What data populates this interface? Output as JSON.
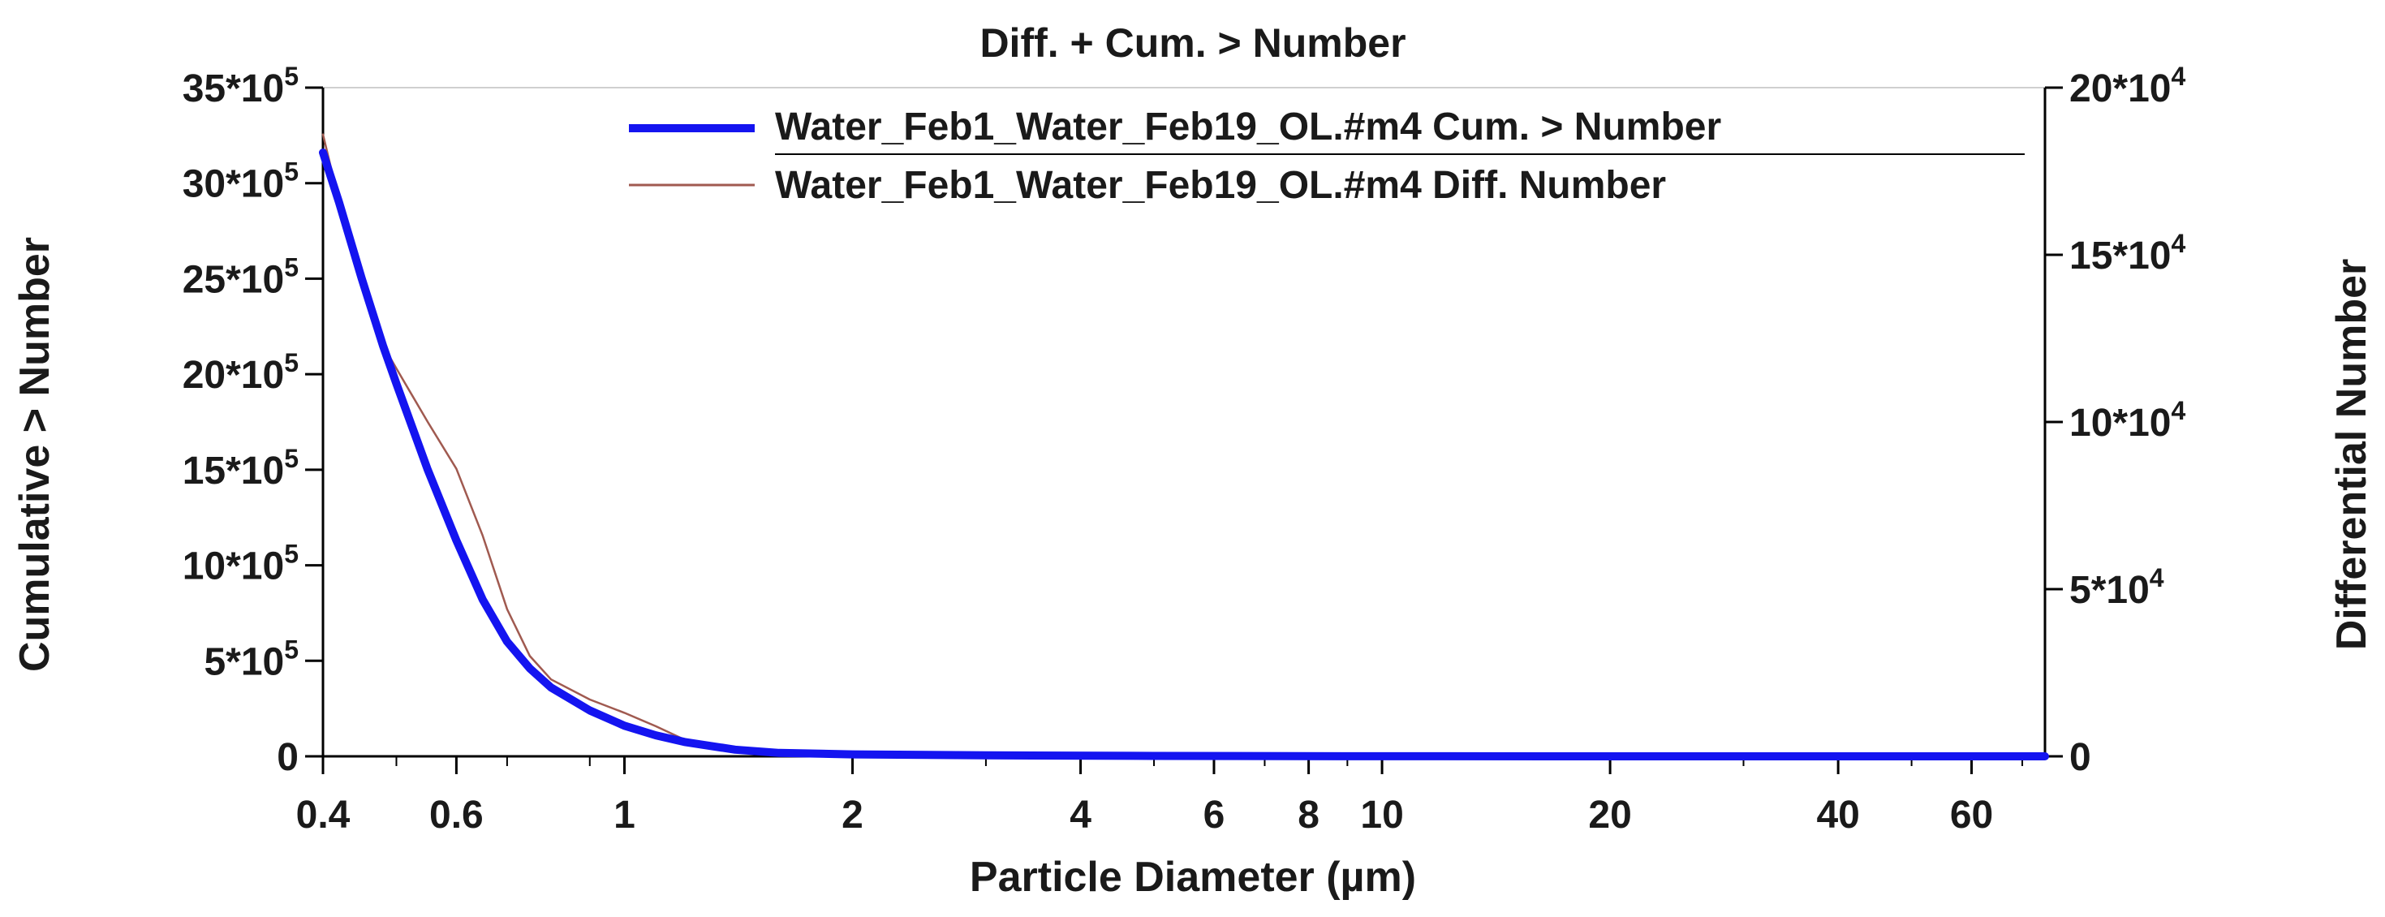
{
  "chart_data": {
    "type": "line",
    "title": "Diff. + Cum. > Number",
    "xlabel": "Particle Diameter (µm)",
    "ylabel_left": "Cumulative > Number",
    "ylabel_right": "Differential Number",
    "x_scale": "log",
    "xlim": [
      0.4,
      75
    ],
    "ylim_left": [
      0,
      3500000
    ],
    "ylim_right": [
      0,
      200000
    ],
    "grid": false,
    "legend_position": "top-right",
    "x_ticks": [
      {
        "value": 0.4,
        "label": "0.4"
      },
      {
        "value": 0.6,
        "label": "0.6"
      },
      {
        "value": 1,
        "label": "1"
      },
      {
        "value": 2,
        "label": "2"
      },
      {
        "value": 4,
        "label": "4"
      },
      {
        "value": 6,
        "label": "6"
      },
      {
        "value": 8,
        "label": "8"
      },
      {
        "value": 10,
        "label": "10"
      },
      {
        "value": 20,
        "label": "20"
      },
      {
        "value": 40,
        "label": "40"
      },
      {
        "value": 60,
        "label": "60"
      }
    ],
    "y_left_ticks": [
      {
        "value": 0,
        "mant": "0",
        "exp": ""
      },
      {
        "value": 500000,
        "mant": "5*10",
        "exp": "5"
      },
      {
        "value": 1000000,
        "mant": "10*10",
        "exp": "5"
      },
      {
        "value": 1500000,
        "mant": "15*10",
        "exp": "5"
      },
      {
        "value": 2000000,
        "mant": "20*10",
        "exp": "5"
      },
      {
        "value": 2500000,
        "mant": "25*10",
        "exp": "5"
      },
      {
        "value": 3000000,
        "mant": "30*10",
        "exp": "5"
      },
      {
        "value": 3500000,
        "mant": "35*10",
        "exp": "5"
      }
    ],
    "y_right_ticks": [
      {
        "value": 0,
        "mant": "0",
        "exp": ""
      },
      {
        "value": 50000,
        "mant": "5*10",
        "exp": "4"
      },
      {
        "value": 100000,
        "mant": "10*10",
        "exp": "4"
      },
      {
        "value": 150000,
        "mant": "15*10",
        "exp": "4"
      },
      {
        "value": 200000,
        "mant": "20*10",
        "exp": "4"
      }
    ],
    "series": [
      {
        "name": "Water_Feb1_Water_Feb19_OL.#m4 Cum. > Number",
        "axis": "left",
        "color": "#1414f0",
        "x": [
          0.4,
          0.42,
          0.45,
          0.48,
          0.5,
          0.55,
          0.6,
          0.65,
          0.7,
          0.75,
          0.8,
          0.9,
          1.0,
          1.1,
          1.2,
          1.4,
          1.6,
          2.0,
          3.0,
          5.0,
          10,
          20,
          75
        ],
        "y": [
          3160000,
          2900000,
          2500000,
          2150000,
          1950000,
          1500000,
          1130000,
          820000,
          600000,
          460000,
          360000,
          240000,
          160000,
          110000,
          75000,
          35000,
          18000,
          10000,
          5000,
          2000,
          500,
          100,
          0
        ]
      },
      {
        "name": "Water_Feb1_Water_Feb19_OL.#m4 Diff. Number",
        "axis": "right",
        "color": "#a05a50",
        "x": [
          0.4,
          0.42,
          0.45,
          0.48,
          0.5,
          0.55,
          0.6,
          0.65,
          0.7,
          0.75,
          0.8,
          0.9,
          1.0,
          1.1,
          1.2,
          1.4,
          1.6,
          2.0,
          3.0,
          5.0,
          10,
          20,
          75
        ],
        "y": [
          186000,
          166000,
          143000,
          123000,
          116000,
          100000,
          86000,
          66000,
          44000,
          30000,
          23000,
          17000,
          13000,
          9000,
          5000,
          2000,
          1500,
          1000,
          500,
          300,
          150,
          80,
          0
        ]
      }
    ]
  }
}
